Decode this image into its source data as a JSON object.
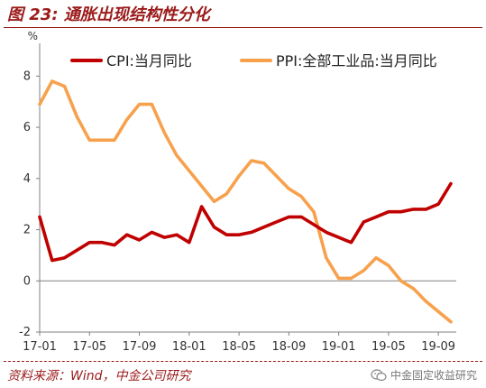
{
  "figure": {
    "title": "图 23:  通胀出现结构性分化",
    "source": "资料来源：Wind，中金公司研究",
    "watermark": "中金固定收益研究",
    "watermark_icon": "wechat-icon"
  },
  "chart_data": {
    "type": "line",
    "y_unit_label": "%",
    "ylim": [
      -2,
      9
    ],
    "y_ticks": [
      "-2",
      "0",
      "2",
      "4",
      "6",
      "8"
    ],
    "x_ticks": [
      "17-01",
      "17-05",
      "17-09",
      "18-01",
      "18-05",
      "18-09",
      "19-01",
      "19-05",
      "19-09"
    ],
    "x": [
      "17-01",
      "17-02",
      "17-03",
      "17-04",
      "17-05",
      "17-06",
      "17-07",
      "17-08",
      "17-09",
      "17-10",
      "17-11",
      "17-12",
      "18-01",
      "18-02",
      "18-03",
      "18-04",
      "18-05",
      "18-06",
      "18-07",
      "18-08",
      "18-09",
      "18-10",
      "18-11",
      "18-12",
      "19-01",
      "19-02",
      "19-03",
      "19-04",
      "19-05",
      "19-06",
      "19-07",
      "19-08",
      "19-09",
      "19-10"
    ],
    "legend_position": "top",
    "grid": false,
    "series": [
      {
        "name": "CPI:当月同比",
        "color": "#c00000",
        "values": [
          2.5,
          0.8,
          0.9,
          1.2,
          1.5,
          1.5,
          1.4,
          1.8,
          1.6,
          1.9,
          1.7,
          1.8,
          1.5,
          2.9,
          2.1,
          1.8,
          1.8,
          1.9,
          2.1,
          2.3,
          2.5,
          2.5,
          2.2,
          1.9,
          1.7,
          1.5,
          2.3,
          2.5,
          2.7,
          2.7,
          2.8,
          2.8,
          3.0,
          3.8
        ]
      },
      {
        "name": "PPI:全部工业品:当月同比",
        "color": "#f7a14d",
        "values": [
          6.9,
          7.8,
          7.6,
          6.4,
          5.5,
          5.5,
          5.5,
          6.3,
          6.9,
          6.9,
          5.8,
          4.9,
          4.3,
          3.7,
          3.1,
          3.4,
          4.1,
          4.7,
          4.6,
          4.1,
          3.6,
          3.3,
          2.7,
          0.9,
          0.1,
          0.1,
          0.4,
          0.9,
          0.6,
          0.0,
          -0.3,
          -0.8,
          -1.2,
          -1.6
        ]
      }
    ]
  }
}
